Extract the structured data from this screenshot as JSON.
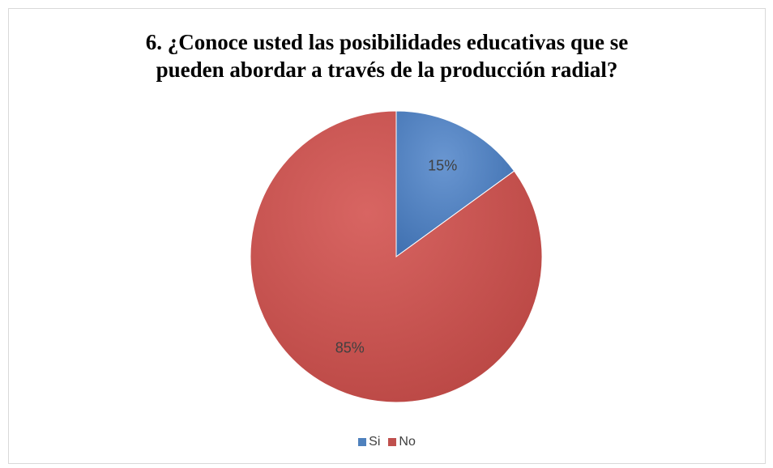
{
  "chart_data": {
    "type": "pie",
    "title_lines": [
      "6. ¿Conoce usted las posibilidades educativas que se",
      "pueden abordar a través de la producción radial?"
    ],
    "categories": [
      "Si",
      "No"
    ],
    "values": [
      15,
      85
    ],
    "data_labels": [
      "15%",
      "85%"
    ],
    "colors": [
      "#4F81BD",
      "#C0504D"
    ],
    "legend_position": "bottom"
  }
}
